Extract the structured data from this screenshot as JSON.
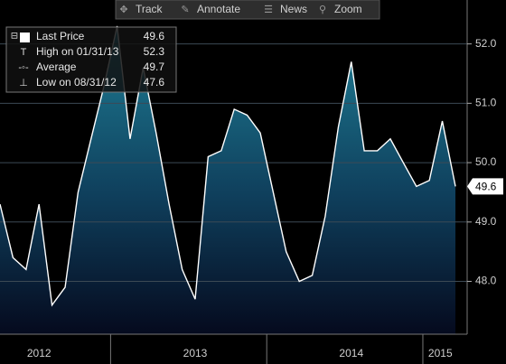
{
  "toolbar": [
    "Track",
    "Annotate",
    "News",
    "Zoom"
  ],
  "chart_data": {
    "type": "area",
    "x": [
      2012.25,
      2012.333,
      2012.417,
      2012.5,
      2012.583,
      2012.667,
      2012.75,
      2012.833,
      2012.917,
      2013,
      2013.083,
      2013.167,
      2013.25,
      2013.333,
      2013.417,
      2013.5,
      2013.583,
      2013.667,
      2013.75,
      2013.833,
      2013.917,
      2014,
      2014.083,
      2014.167,
      2014.25,
      2014.333,
      2014.417,
      2014.5,
      2014.583,
      2014.667,
      2014.75,
      2014.833,
      2014.917,
      2015,
      2015.083,
      2015.167
    ],
    "series": [
      {
        "name": "Last Price",
        "color": "#ffffff",
        "values": [
          49.3,
          48.4,
          48.2,
          49.3,
          47.6,
          47.9,
          49.5,
          50.4,
          51.3,
          52.3,
          50.4,
          51.6,
          50.5,
          49.3,
          48.2,
          47.7,
          50.1,
          50.2,
          50.9,
          50.8,
          50.5,
          49.5,
          48.5,
          48.0,
          48.1,
          49.1,
          50.6,
          51.7,
          50.2,
          50.2,
          50.4,
          50.0,
          49.6,
          49.7,
          50.7,
          49.6
        ]
      }
    ],
    "legend": [
      {
        "label": "Last Price"
      },
      {
        "label": "High on 01/31/13"
      },
      {
        "label": "Average",
        "value": 49.7
      },
      {
        "label": "Low on 08/31/12"
      }
    ],
    "xlim": [
      2012.25,
      2015.242
    ],
    "xticks": [
      {
        "value": 2012.5,
        "label": "2012"
      },
      {
        "value": 2013.5,
        "label": "2013"
      },
      {
        "value": 2014.5,
        "label": "2014"
      },
      {
        "value": 2015.07,
        "label": "2015"
      }
    ],
    "ylim": [
      47.11,
      52.74
    ],
    "yticks": [
      {
        "value": 48,
        "label": "48.0"
      },
      {
        "value": 49,
        "label": "49.0"
      },
      {
        "value": 50,
        "label": "50.0"
      },
      {
        "value": 51,
        "label": "51.0"
      },
      {
        "value": 52,
        "label": "52.0"
      }
    ],
    "grid": true
  }
}
